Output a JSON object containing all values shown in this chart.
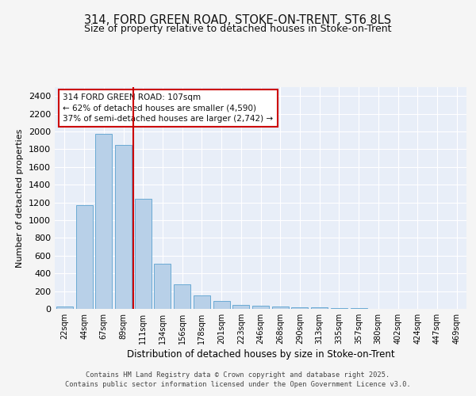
{
  "title_line1": "314, FORD GREEN ROAD, STOKE-ON-TRENT, ST6 8LS",
  "title_line2": "Size of property relative to detached houses in Stoke-on-Trent",
  "xlabel": "Distribution of detached houses by size in Stoke-on-Trent",
  "ylabel": "Number of detached properties",
  "categories": [
    "22sqm",
    "44sqm",
    "67sqm",
    "89sqm",
    "111sqm",
    "134sqm",
    "156sqm",
    "178sqm",
    "201sqm",
    "223sqm",
    "246sqm",
    "268sqm",
    "290sqm",
    "313sqm",
    "335sqm",
    "357sqm",
    "380sqm",
    "402sqm",
    "424sqm",
    "447sqm",
    "469sqm"
  ],
  "values": [
    28,
    1170,
    1970,
    1850,
    1240,
    510,
    275,
    155,
    90,
    48,
    40,
    30,
    20,
    15,
    8,
    5,
    3,
    2,
    2,
    2,
    2
  ],
  "bar_color": "#b8d0e8",
  "bar_edge_color": "#6aaad4",
  "bg_color": "#e8eef8",
  "grid_color": "#ffffff",
  "red_line_index": 4,
  "annotation_text": "314 FORD GREEN ROAD: 107sqm\n← 62% of detached houses are smaller (4,590)\n37% of semi-detached houses are larger (2,742) →",
  "annotation_box_color": "#ffffff",
  "annotation_box_edge": "#cc0000",
  "footer_line1": "Contains HM Land Registry data © Crown copyright and database right 2025.",
  "footer_line2": "Contains public sector information licensed under the Open Government Licence v3.0.",
  "ylim": [
    0,
    2500
  ],
  "yticks": [
    0,
    200,
    400,
    600,
    800,
    1000,
    1200,
    1400,
    1600,
    1800,
    2000,
    2200,
    2400
  ],
  "fig_bg": "#f5f5f5"
}
